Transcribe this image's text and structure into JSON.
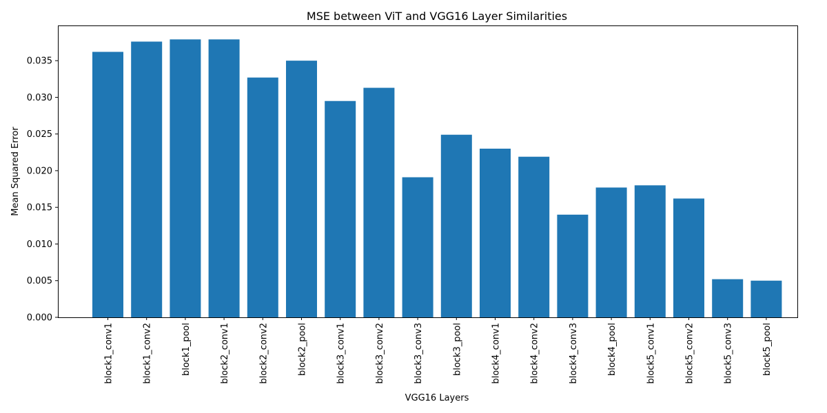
{
  "chart_data": {
    "type": "bar",
    "title": "MSE between ViT and VGG16 Layer Similarities",
    "xlabel": "VGG16 Layers",
    "ylabel": "Mean Squared Error",
    "categories": [
      "block1_conv1",
      "block1_conv2",
      "block1_pool",
      "block2_conv1",
      "block2_conv2",
      "block2_pool",
      "block3_conv1",
      "block3_conv2",
      "block3_conv3",
      "block3_pool",
      "block4_conv1",
      "block4_conv2",
      "block4_conv3",
      "block4_pool",
      "block5_conv1",
      "block5_conv2",
      "block5_conv3",
      "block5_pool"
    ],
    "values": [
      0.0362,
      0.0376,
      0.0379,
      0.0379,
      0.0327,
      0.035,
      0.0295,
      0.0313,
      0.0191,
      0.0249,
      0.023,
      0.0219,
      0.014,
      0.0177,
      0.018,
      0.0162,
      0.0052,
      0.005
    ],
    "ylim": [
      0,
      0.0398
    ],
    "yticks": [
      0.0,
      0.005,
      0.01,
      0.015,
      0.02,
      0.025,
      0.03,
      0.035
    ],
    "ytick_labels": [
      "0.000",
      "0.005",
      "0.010",
      "0.015",
      "0.020",
      "0.025",
      "0.030",
      "0.035"
    ],
    "bar_color": "#1f77b4",
    "grid": false,
    "legend": "none"
  }
}
